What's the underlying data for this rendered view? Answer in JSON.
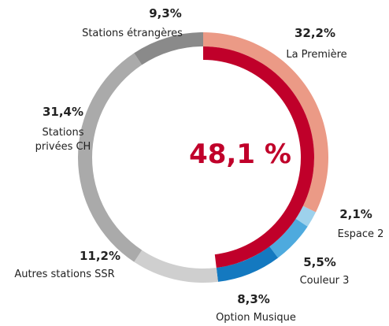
{
  "chart_data": {
    "type": "donut",
    "categories": [
      "La Première",
      "Espace 2",
      "Couleur 3",
      "Option Musique",
      "Autres stations SSR",
      "Stations privées CH",
      "Stations étrangères"
    ],
    "values": [
      32.2,
      2.1,
      5.5,
      8.3,
      11.2,
      31.4,
      9.3
    ],
    "value_labels": [
      "32,2%",
      "2,1%",
      "5,5%",
      "8,3%",
      "11,2%",
      "31,4%",
      "9,3%"
    ],
    "colors": [
      "#eb9a86",
      "#9dd1ec",
      "#4eaade",
      "#1479c0",
      "#cfcfcf",
      "#aaaaaa",
      "#8a8a8a"
    ],
    "highlight_value": 48.1,
    "highlight_label": "48,1 %",
    "highlight_color": "#c0002a"
  }
}
